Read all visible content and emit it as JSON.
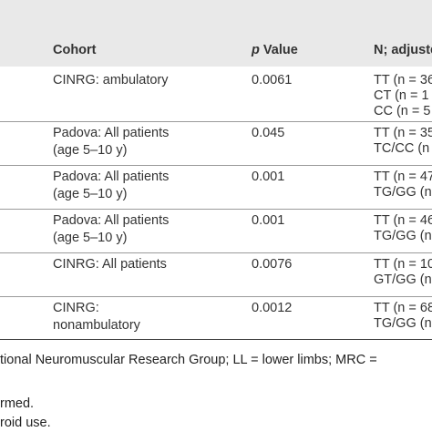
{
  "table": {
    "headers": {
      "cohort": "Cohort",
      "p_italic": "p",
      "p_rest": " Value",
      "n": "N; adjuste"
    },
    "rows": [
      {
        "cohort": [
          "CINRG: ambulatory"
        ],
        "p": "0.0061",
        "n": [
          "TT (n = 36",
          "CT (n = 1",
          "CC (n = 5"
        ]
      },
      {
        "cohort": [
          "Padova: All patients",
          "(age 5–10 y)"
        ],
        "p": "0.045",
        "n": [
          "TT (n = 35",
          "TC/CC (n"
        ]
      },
      {
        "cohort": [
          "Padova: All patients",
          "(age 5–10 y)"
        ],
        "p": "0.001",
        "n": [
          "TT (n = 47",
          "TG/GG (n"
        ]
      },
      {
        "cohort": [
          "Padova: All patients",
          "(age 5–10 y)"
        ],
        "p": "0.001",
        "n": [
          "TT (n = 46",
          "TG/GG (n"
        ]
      },
      {
        "cohort": [
          "CINRG: All patients"
        ],
        "p": "0.0076",
        "n": [
          "TT (n = 10",
          "GT/GG (n"
        ]
      },
      {
        "cohort": [
          "CINRG:",
          "nonambulatory"
        ],
        "p": "0.0012",
        "n": [
          "TT (n = 68",
          "TG/GG (n"
        ]
      }
    ]
  },
  "footer": {
    "line1": "tional Neuromuscular Research Group; LL = lower limbs; MRC =",
    "line2": "rmed.",
    "line3": "roid use."
  }
}
